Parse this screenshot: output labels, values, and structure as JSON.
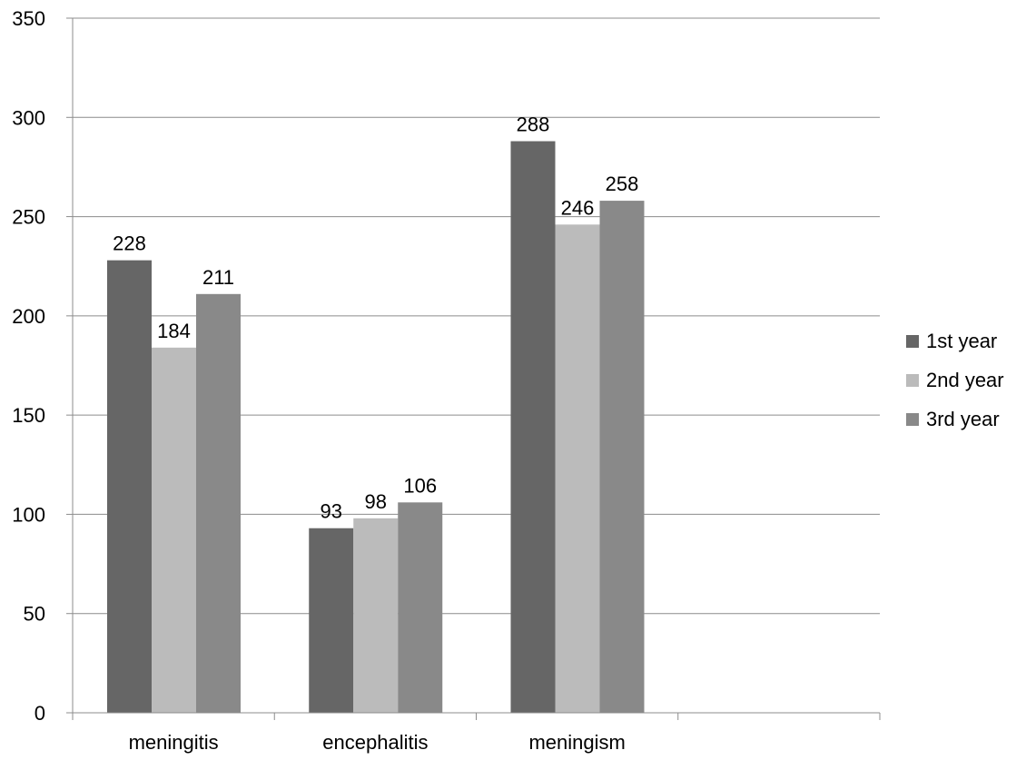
{
  "chart_data": {
    "type": "bar",
    "title": "",
    "xlabel": "",
    "ylabel": "",
    "categories": [
      "meningitis",
      "encephalitis",
      "meningism"
    ],
    "series": [
      {
        "name": "1st year",
        "color": "#666666",
        "values": [
          228,
          93,
          288
        ]
      },
      {
        "name": "2nd year",
        "color": "#bbbbbb",
        "values": [
          184,
          98,
          246
        ]
      },
      {
        "name": "3rd year",
        "color": "#898989",
        "values": [
          211,
          106,
          258
        ]
      }
    ],
    "category_slots": 4,
    "ylim": [
      0,
      350
    ],
    "yticks": [
      0,
      50,
      100,
      150,
      200,
      250,
      300,
      350
    ],
    "grid": true,
    "legend_position": "right",
    "data_labels": true
  }
}
